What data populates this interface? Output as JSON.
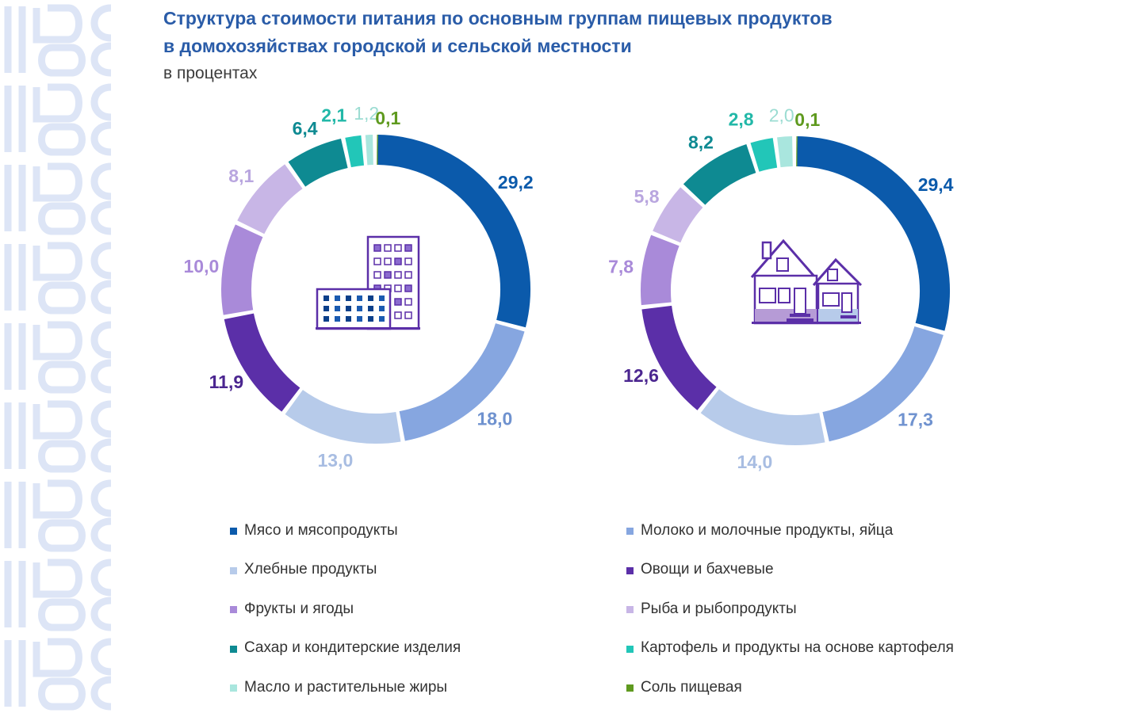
{
  "header": {
    "title_line1": "Структура стоимости питания по основным группам пищевых продуктов",
    "title_line2": "в домохозяйствах городской и сельской местности",
    "subtitle": "в процентах"
  },
  "categories": [
    "Мясо и мясопродукты",
    "Молоко и молочные продукты, яйца",
    "Хлебные продукты",
    "Овощи и бахчевые",
    "Фрукты и ягоды",
    "Рыба и рыбопродукты",
    "Сахар и кондитерские изделия",
    "Картофель и продукты на основе картофеля",
    "Масло и растительные жиры",
    "Соль пищевая"
  ],
  "colors": [
    "#0b5aab",
    "#86a6e0",
    "#b7cbea",
    "#5b2fa8",
    "#a98ad9",
    "#c8b6e6",
    "#0e8a92",
    "#22c6b8",
    "#a9e6de",
    "#5f9a1f"
  ],
  "label_colors": [
    "#0b5aab",
    "#6f92cf",
    "#a8bde2",
    "#4b2690",
    "#a98ad9",
    "#b9a6df",
    "#0e8a92",
    "#22b8a8",
    "#9bdcd2",
    "#5f9a1f"
  ],
  "icons": {
    "urban": "apartment-buildings-icon",
    "rural": "country-houses-icon"
  },
  "chart_data": [
    {
      "type": "pie",
      "donut": true,
      "categories": [
        "Мясо и мясопродукты",
        "Молоко и молочные продукты, яйца",
        "Хлебные продукты",
        "Овощи и бахчевые",
        "Фрукты и ягоды",
        "Рыба и рыбопродукты",
        "Сахар и кондитерские изделия",
        "Картофель и продукты на основе картофеля",
        "Масло и растительные жиры",
        "Соль пищевая"
      ],
      "values": [
        29.2,
        18.0,
        13.0,
        11.9,
        10.0,
        8.1,
        6.4,
        2.1,
        1.2,
        0.1
      ],
      "labels": [
        "29,2",
        "18,0",
        "13,0",
        "11,9",
        "10,0",
        "8,1",
        "6,4",
        "2,1",
        "1,2",
        "0,1"
      ]
    },
    {
      "type": "pie",
      "donut": true,
      "categories": [
        "Мясо и мясопродукты",
        "Молоко и молочные продукты, яйца",
        "Хлебные продукты",
        "Овощи и бахчевые",
        "Фрукты и ягоды",
        "Рыба и рыбопродукты",
        "Сахар и кондитерские изделия",
        "Картофель и продукты на основе картофеля",
        "Масло и растительные жиры",
        "Соль пищевая"
      ],
      "values": [
        29.4,
        17.3,
        14.0,
        12.6,
        7.8,
        5.8,
        8.2,
        2.8,
        2.0,
        0.1
      ],
      "labels": [
        "29,4",
        "17,3",
        "14,0",
        "12,6",
        "7,8",
        "5,8",
        "8,2",
        "2,8",
        "2,0",
        "0,1"
      ]
    }
  ]
}
